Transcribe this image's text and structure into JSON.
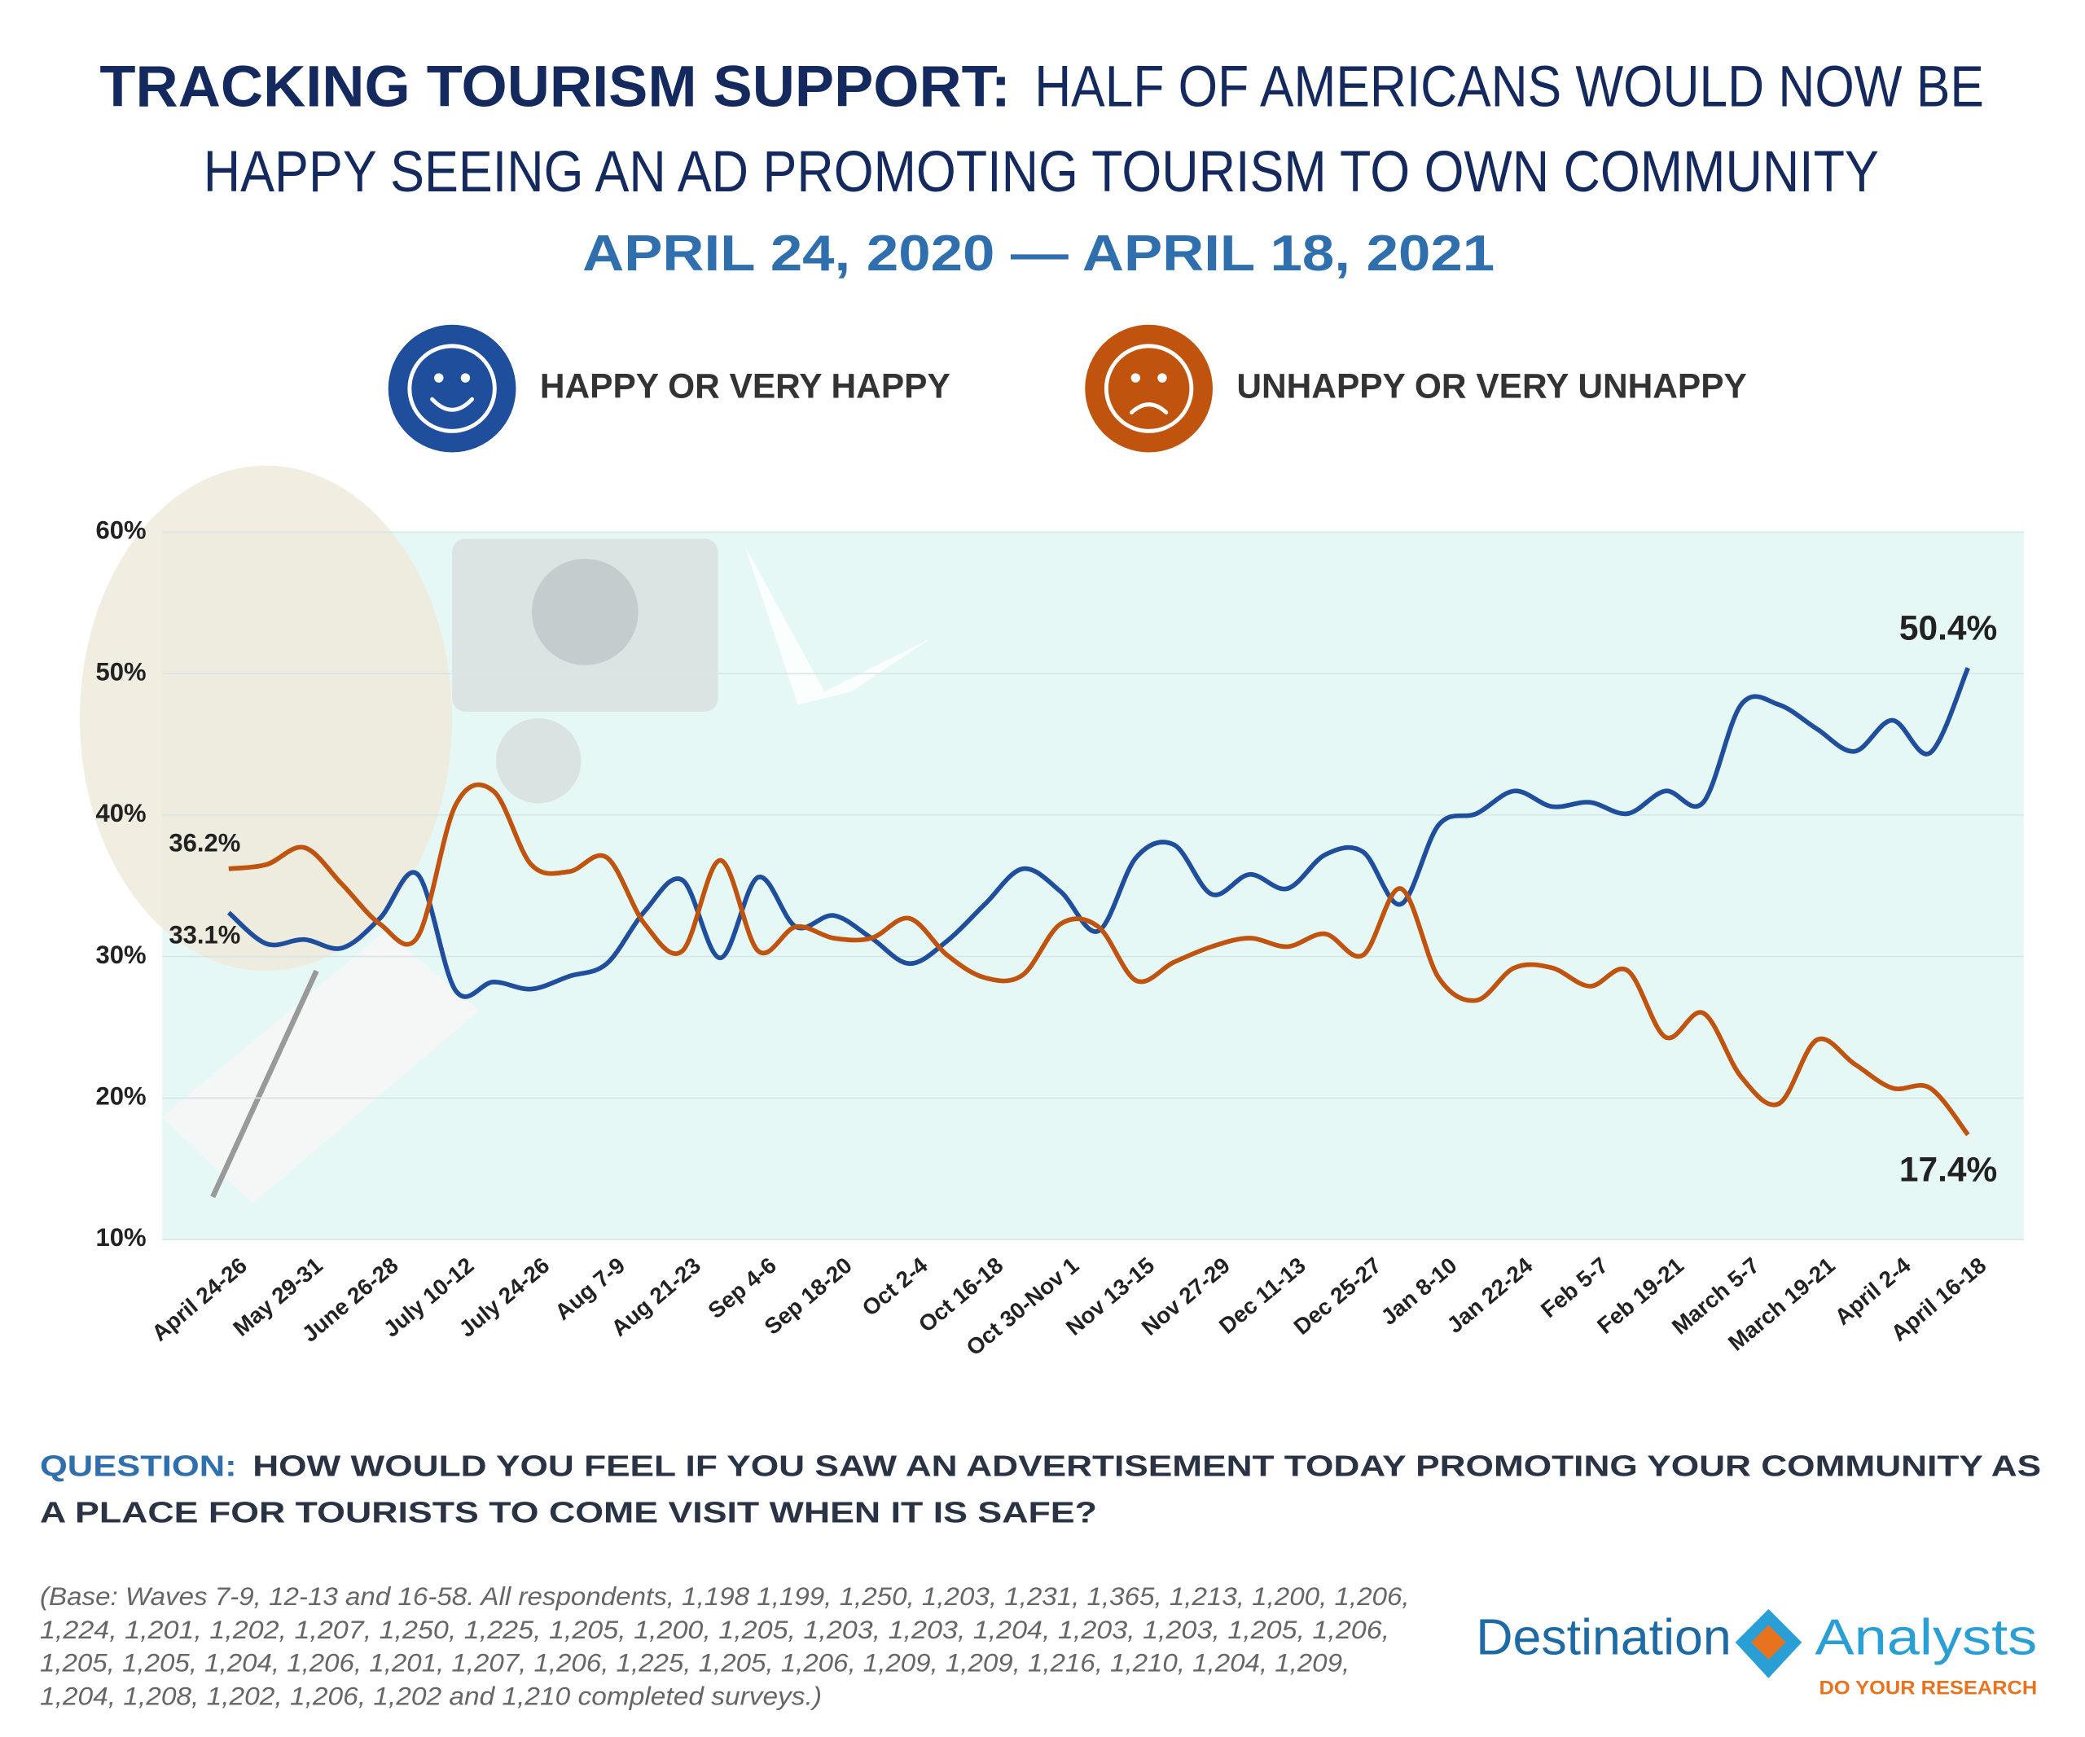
{
  "chart_data": {
    "type": "line",
    "title_lead": "TRACKING TOURISM SUPPORT:",
    "title_lines": [
      "HALF OF AMERICANS WOULD NOW BE",
      "HAPPY SEEING AN AD PROMOTING TOURISM TO OWN COMMUNITY"
    ],
    "subtitle": "APRIL 24, 2020 — APRIL 18, 2021",
    "categories": [
      "April 24-26",
      null,
      "May 29-31",
      null,
      "June 26-28",
      null,
      "July 10-12",
      null,
      "July 24-26",
      null,
      "Aug 7-9",
      null,
      "Aug 21-23",
      null,
      "Sep 4-6",
      null,
      "Sep 18-20",
      null,
      "Oct 2-4",
      null,
      "Oct 16-18",
      null,
      "Oct 30-Nov 1",
      null,
      "Nov 13-15",
      null,
      "Nov 27-29",
      null,
      "Dec 11-13",
      null,
      "Dec 25-27",
      null,
      "Jan 8-10",
      null,
      "Jan 22-24",
      null,
      "Feb 5-7",
      null,
      "Feb 19-21",
      null,
      "March 5-7",
      null,
      "March 19-21",
      null,
      "April 2-4",
      null,
      "April 16-18"
    ],
    "series": [
      {
        "name": "HAPPY OR VERY HAPPY",
        "color": "#1f4e9c",
        "values": [
          33.1,
          30.9,
          31.2,
          30.6,
          32.7,
          35.8,
          27.6,
          28.2,
          27.7,
          28.6,
          29.5,
          33.2,
          35.4,
          29.9,
          35.6,
          32.1,
          32.9,
          31.3,
          29.5,
          31.1,
          33.7,
          36.2,
          34.6,
          31.8,
          37.0,
          37.9,
          34.4,
          35.8,
          34.8,
          37.2,
          37.4,
          33.7,
          39.3,
          40.1,
          41.7,
          40.6,
          40.9,
          40.1,
          41.7,
          40.9,
          47.8,
          47.8,
          46.1,
          44.5,
          46.7,
          44.4,
          50.4
        ],
        "value_labels": [
          "33.1%",
          null,
          null,
          null,
          null,
          null,
          null,
          null,
          null,
          null,
          null,
          null,
          null,
          null,
          null,
          null,
          null,
          null,
          null,
          null,
          null,
          null,
          null,
          null,
          null,
          null,
          null,
          null,
          null,
          null,
          null,
          null,
          null,
          null,
          null,
          null,
          null,
          null,
          null,
          null,
          null,
          null,
          null,
          null,
          null,
          null,
          "50.4%"
        ]
      },
      {
        "name": "UNHAPPY OR VERY UNHAPPY",
        "color": "#c0540f",
        "values": [
          36.2,
          36.5,
          37.7,
          35.1,
          32.3,
          31.4,
          40.7,
          41.7,
          36.5,
          36.0,
          37.0,
          32.3,
          30.4,
          36.8,
          30.4,
          32.1,
          31.3,
          31.3,
          32.7,
          30.1,
          28.5,
          28.7,
          32.3,
          32.1,
          28.3,
          29.6,
          30.7,
          31.3,
          30.7,
          31.6,
          30.1,
          34.8,
          28.5,
          26.9,
          29.2,
          29.2,
          27.9,
          29.0,
          24.3,
          26.0,
          21.5,
          19.6,
          24.1,
          22.4,
          20.7,
          20.7,
          17.4
        ],
        "value_labels": [
          "36.2%",
          null,
          null,
          null,
          null,
          null,
          null,
          null,
          null,
          null,
          null,
          null,
          null,
          null,
          null,
          null,
          null,
          null,
          null,
          null,
          null,
          null,
          null,
          null,
          null,
          null,
          null,
          null,
          null,
          null,
          null,
          null,
          null,
          null,
          null,
          null,
          null,
          null,
          null,
          null,
          null,
          null,
          null,
          null,
          null,
          null,
          "17.4%"
        ]
      }
    ],
    "ylim": [
      10,
      60
    ],
    "yticks": [
      {
        "value": 10,
        "label": "10%"
      },
      {
        "value": 20,
        "label": "20%"
      },
      {
        "value": 30,
        "label": "30%"
      },
      {
        "value": 40,
        "label": "40%"
      },
      {
        "value": 50,
        "label": "50%"
      },
      {
        "value": 60,
        "label": "60%"
      }
    ],
    "grid": true,
    "legend": "top",
    "question_lead": "QUESTION:",
    "question_lines": [
      "HOW WOULD YOU FEEL IF YOU SAW AN ADVERTISEMENT TODAY PROMOTING YOUR COMMUNITY AS",
      "A PLACE FOR TOURISTS TO COME VISIT WHEN IT IS SAFE?"
    ],
    "footnote_lines": [
      "(Base: Waves 7-9, 12-13 and 16-58. All respondents, 1,198 1,199, 1,250, 1,203, 1,231, 1,365, 1,213, 1,200, 1,206,",
      "1,224, 1,201, 1,202, 1,207, 1,250, 1,225, 1,205, 1,200, 1,205, 1,203, 1,203, 1,204, 1,203, 1,203, 1,205, 1,206,",
      "1,205, 1,205, 1,204, 1,206, 1,201, 1,207, 1,206, 1,225, 1,205, 1,206, 1,209, 1,209, 1,216, 1,210, 1,204, 1,209,",
      "1,204, 1,208, 1,202, 1,206, 1,202 and 1,210 completed surveys.)"
    ],
    "logo": {
      "left": "Destination",
      "right": "Analysts",
      "tagline": "DO YOUR RESEARCH"
    }
  }
}
